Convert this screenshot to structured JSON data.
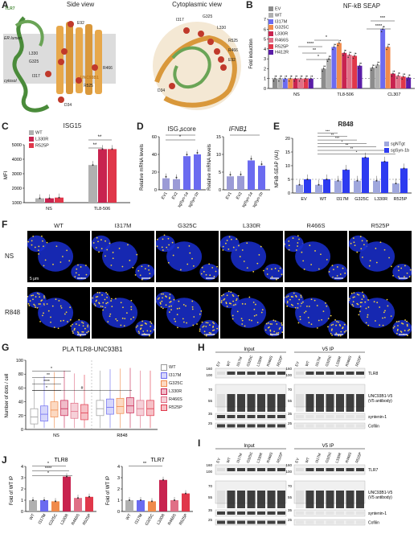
{
  "letters": {
    "A": "A",
    "B": "B",
    "C": "C",
    "D": "D",
    "E": "E",
    "F": "F",
    "G": "G",
    "H": "H",
    "I": "I",
    "J": "J"
  },
  "panelA": {
    "side_title": "Side view",
    "cyto_title": "Cytoplasmic view",
    "tlr7": "TLR7",
    "unc": "UNC93B1",
    "er_lumen": "ER lumen",
    "cytosol": "cytosol",
    "side_labels": [
      "E92",
      "L330",
      "G325",
      "I317",
      "R466",
      "R525",
      "D34"
    ],
    "cyto_labels": [
      "I317",
      "G325",
      "L330",
      "R525",
      "R466",
      "E92",
      "D34"
    ]
  },
  "panelB": {
    "title": "NF-kB SEAP",
    "ylabel": "Fold induction",
    "groups": [
      "NS",
      "TL8-506",
      "CL307"
    ],
    "legend": [
      "EV",
      "WT",
      "I317M",
      "G325C",
      "L330R",
      "R466S",
      "R525P",
      "H412R"
    ],
    "stars": [
      "*",
      "**",
      "****",
      "*",
      "***",
      "****"
    ]
  },
  "panelC": {
    "title": "ISG15",
    "ylabel": "MFI",
    "groups": [
      "NS",
      "TL8-506"
    ],
    "legend": [
      "WT",
      "L330R",
      "R525P"
    ],
    "stars": [
      "**",
      "**"
    ],
    "ticks": [
      "1000",
      "2000",
      "3000",
      "4000",
      "5000"
    ]
  },
  "panelD": {
    "title1": "ISG score",
    "title2": "IFNB1",
    "ylabel": "Relative mRNA levels",
    "cats": [
      "EV1",
      "EV2",
      "sgSyn-1a",
      "sgSyn-1b"
    ],
    "stars1": [
      "*",
      "*"
    ],
    "stars2": [
      "*"
    ]
  },
  "panelE": {
    "title": "R848",
    "ylabel": "NFkB-SEAP (AU)",
    "cats": [
      "EV",
      "WT",
      "I317M",
      "G325C",
      "L330R",
      "R525P"
    ],
    "legend": [
      "sgNTgt",
      "sgSyn-1b"
    ],
    "stars": [
      "***",
      "**",
      "***",
      "*",
      "**",
      "**",
      "*"
    ]
  },
  "panelF": {
    "cols": [
      "WT",
      "I317M",
      "G325C",
      "L330R",
      "R466S",
      "R525P"
    ],
    "rows": [
      "NS",
      "R848"
    ],
    "scale": "5 μm"
  },
  "panelG": {
    "title": "PLA TLR8-UNC93B1",
    "ylabel": "Number of dots / cell",
    "groups": [
      "NS",
      "R848"
    ],
    "legend": [
      "WT",
      "I317M",
      "G325C",
      "L330R",
      "R466S",
      "R525P"
    ],
    "stars": [
      "****",
      "**",
      "*",
      "*",
      "#"
    ],
    "ticks": [
      "0",
      "20",
      "40",
      "60",
      "80",
      "100"
    ]
  },
  "panelH": {
    "input": "Input",
    "ip": "V5 IP",
    "lanes": [
      "EV",
      "WT",
      "I317M",
      "G325C",
      "L330R",
      "R466S",
      "R525P"
    ],
    "bands": [
      "TLR8",
      "UNC93B1-V5\n(V5 antibody)",
      "syntenin-1",
      "Cofilin"
    ],
    "mw": [
      "160",
      "100",
      "70",
      "55",
      "35",
      "25"
    ]
  },
  "panelI": {
    "input": "Input",
    "ip": "V5 IP",
    "lanes": [
      "EV",
      "WT",
      "I317M",
      "G325C",
      "L330R",
      "R466S",
      "R525P"
    ],
    "bands": [
      "TLR7",
      "UNC93B1-V5\n(V5 antibody)",
      "syntenin-1",
      "Cofilin"
    ],
    "mw": [
      "160",
      "100",
      "70",
      "55",
      "35",
      "25"
    ]
  },
  "panelJ": {
    "title1": "TLR8",
    "title2": "TLR7",
    "ylabel": "Fold of WT IP",
    "cats1": [
      "WT",
      "I317M",
      "G325C",
      "L330R",
      "R466S",
      "R525P"
    ],
    "cats2": [
      "WT",
      "I317M",
      "G325C",
      "L330R",
      "R466S",
      "R525P"
    ],
    "stars1": [
      "*",
      "****",
      "*"
    ],
    "stars2": [
      "**"
    ],
    "ticks": [
      "0",
      "1",
      "2",
      "3",
      "4"
    ]
  },
  "colors": {
    "EV": "#8c8c8c",
    "WT": "#b0b0b0",
    "I317M": "#6b6bf0",
    "G325C": "#f08a4b",
    "L330R": "#c8234f",
    "R466S": "#e06f86",
    "R525P": "#e0374a",
    "H412R": "#5a1da8",
    "sgNTgt": "#9fa7dd",
    "sgSyn": "#2d3bf0",
    "dapi": "#1a2fd0",
    "pla": "#f3d23a"
  },
  "chart_data": [
    {
      "type": "bar",
      "title": "NF-kB SEAP",
      "ylabel": "Fold induction",
      "categories": [
        "NS",
        "TL8-506",
        "CL307"
      ],
      "ylim": [
        0,
        7
      ],
      "series": [
        {
          "name": "EV",
          "values": [
            1.0,
            2.0,
            2.1
          ]
        },
        {
          "name": "WT",
          "values": [
            1.0,
            3.0,
            2.4
          ]
        },
        {
          "name": "I317M",
          "values": [
            1.0,
            4.2,
            6.0
          ]
        },
        {
          "name": "G325C",
          "values": [
            1.0,
            4.6,
            4.2
          ]
        },
        {
          "name": "L330R",
          "values": [
            1.0,
            3.6,
            1.5
          ]
        },
        {
          "name": "R466S",
          "values": [
            1.0,
            3.4,
            1.3
          ]
        },
        {
          "name": "R525P",
          "values": [
            1.0,
            3.3,
            1.2
          ]
        },
        {
          "name": "H412R",
          "values": [
            1.0,
            2.3,
            1.1
          ]
        }
      ]
    },
    {
      "type": "bar",
      "title": "ISG15",
      "ylabel": "MFI",
      "categories": [
        "NS",
        "TL8-506"
      ],
      "ylim": [
        1000,
        5000
      ],
      "series": [
        {
          "name": "WT",
          "values": [
            1300,
            3600
          ]
        },
        {
          "name": "L330R",
          "values": [
            1300,
            4700
          ]
        },
        {
          "name": "R525P",
          "values": [
            1350,
            4700
          ]
        }
      ]
    },
    {
      "type": "bar",
      "title": "ISG score",
      "ylabel": "Relative mRNA levels",
      "categories": [
        "EV1",
        "EV2",
        "sgSyn-1a",
        "sgSyn-1b"
      ],
      "ylim": [
        0,
        60
      ],
      "values": [
        13,
        12,
        38,
        40
      ]
    },
    {
      "type": "bar",
      "title": "IFNB1",
      "categories": [
        "EV1",
        "EV2",
        "sgSyn-1a",
        "sgSyn-1b"
      ],
      "ylim": [
        0,
        15
      ],
      "values": [
        3.8,
        3.9,
        8.3,
        6.8
      ]
    },
    {
      "type": "bar",
      "title": "R848",
      "ylabel": "NFkB-SEAP (AU)",
      "categories": [
        "EV",
        "WT",
        "I317M",
        "G325C",
        "L330R",
        "R525P"
      ],
      "ylim": [
        0,
        20
      ],
      "series": [
        {
          "name": "sgNTgt",
          "values": [
            3,
            3,
            4.5,
            4.5,
            4.5,
            3.5
          ]
        },
        {
          "name": "sgSyn-1b",
          "values": [
            5,
            5,
            8.5,
            13,
            11.5,
            9
          ]
        }
      ]
    },
    {
      "type": "bar",
      "title": "TLR8",
      "ylabel": "Fold of WT IP",
      "categories": [
        "WT",
        "I317M",
        "G325C",
        "L330R",
        "R466S",
        "R525P"
      ],
      "ylim": [
        0,
        4
      ],
      "values": [
        1.0,
        1.0,
        0.9,
        3.1,
        1.2,
        1.3
      ]
    },
    {
      "type": "bar",
      "title": "TLR7",
      "categories": [
        "WT",
        "I317M",
        "G325C",
        "L330R",
        "R466S",
        "R525P"
      ],
      "ylim": [
        0,
        4
      ],
      "values": [
        1.0,
        1.0,
        0.9,
        2.8,
        1.0,
        1.6
      ]
    }
  ]
}
